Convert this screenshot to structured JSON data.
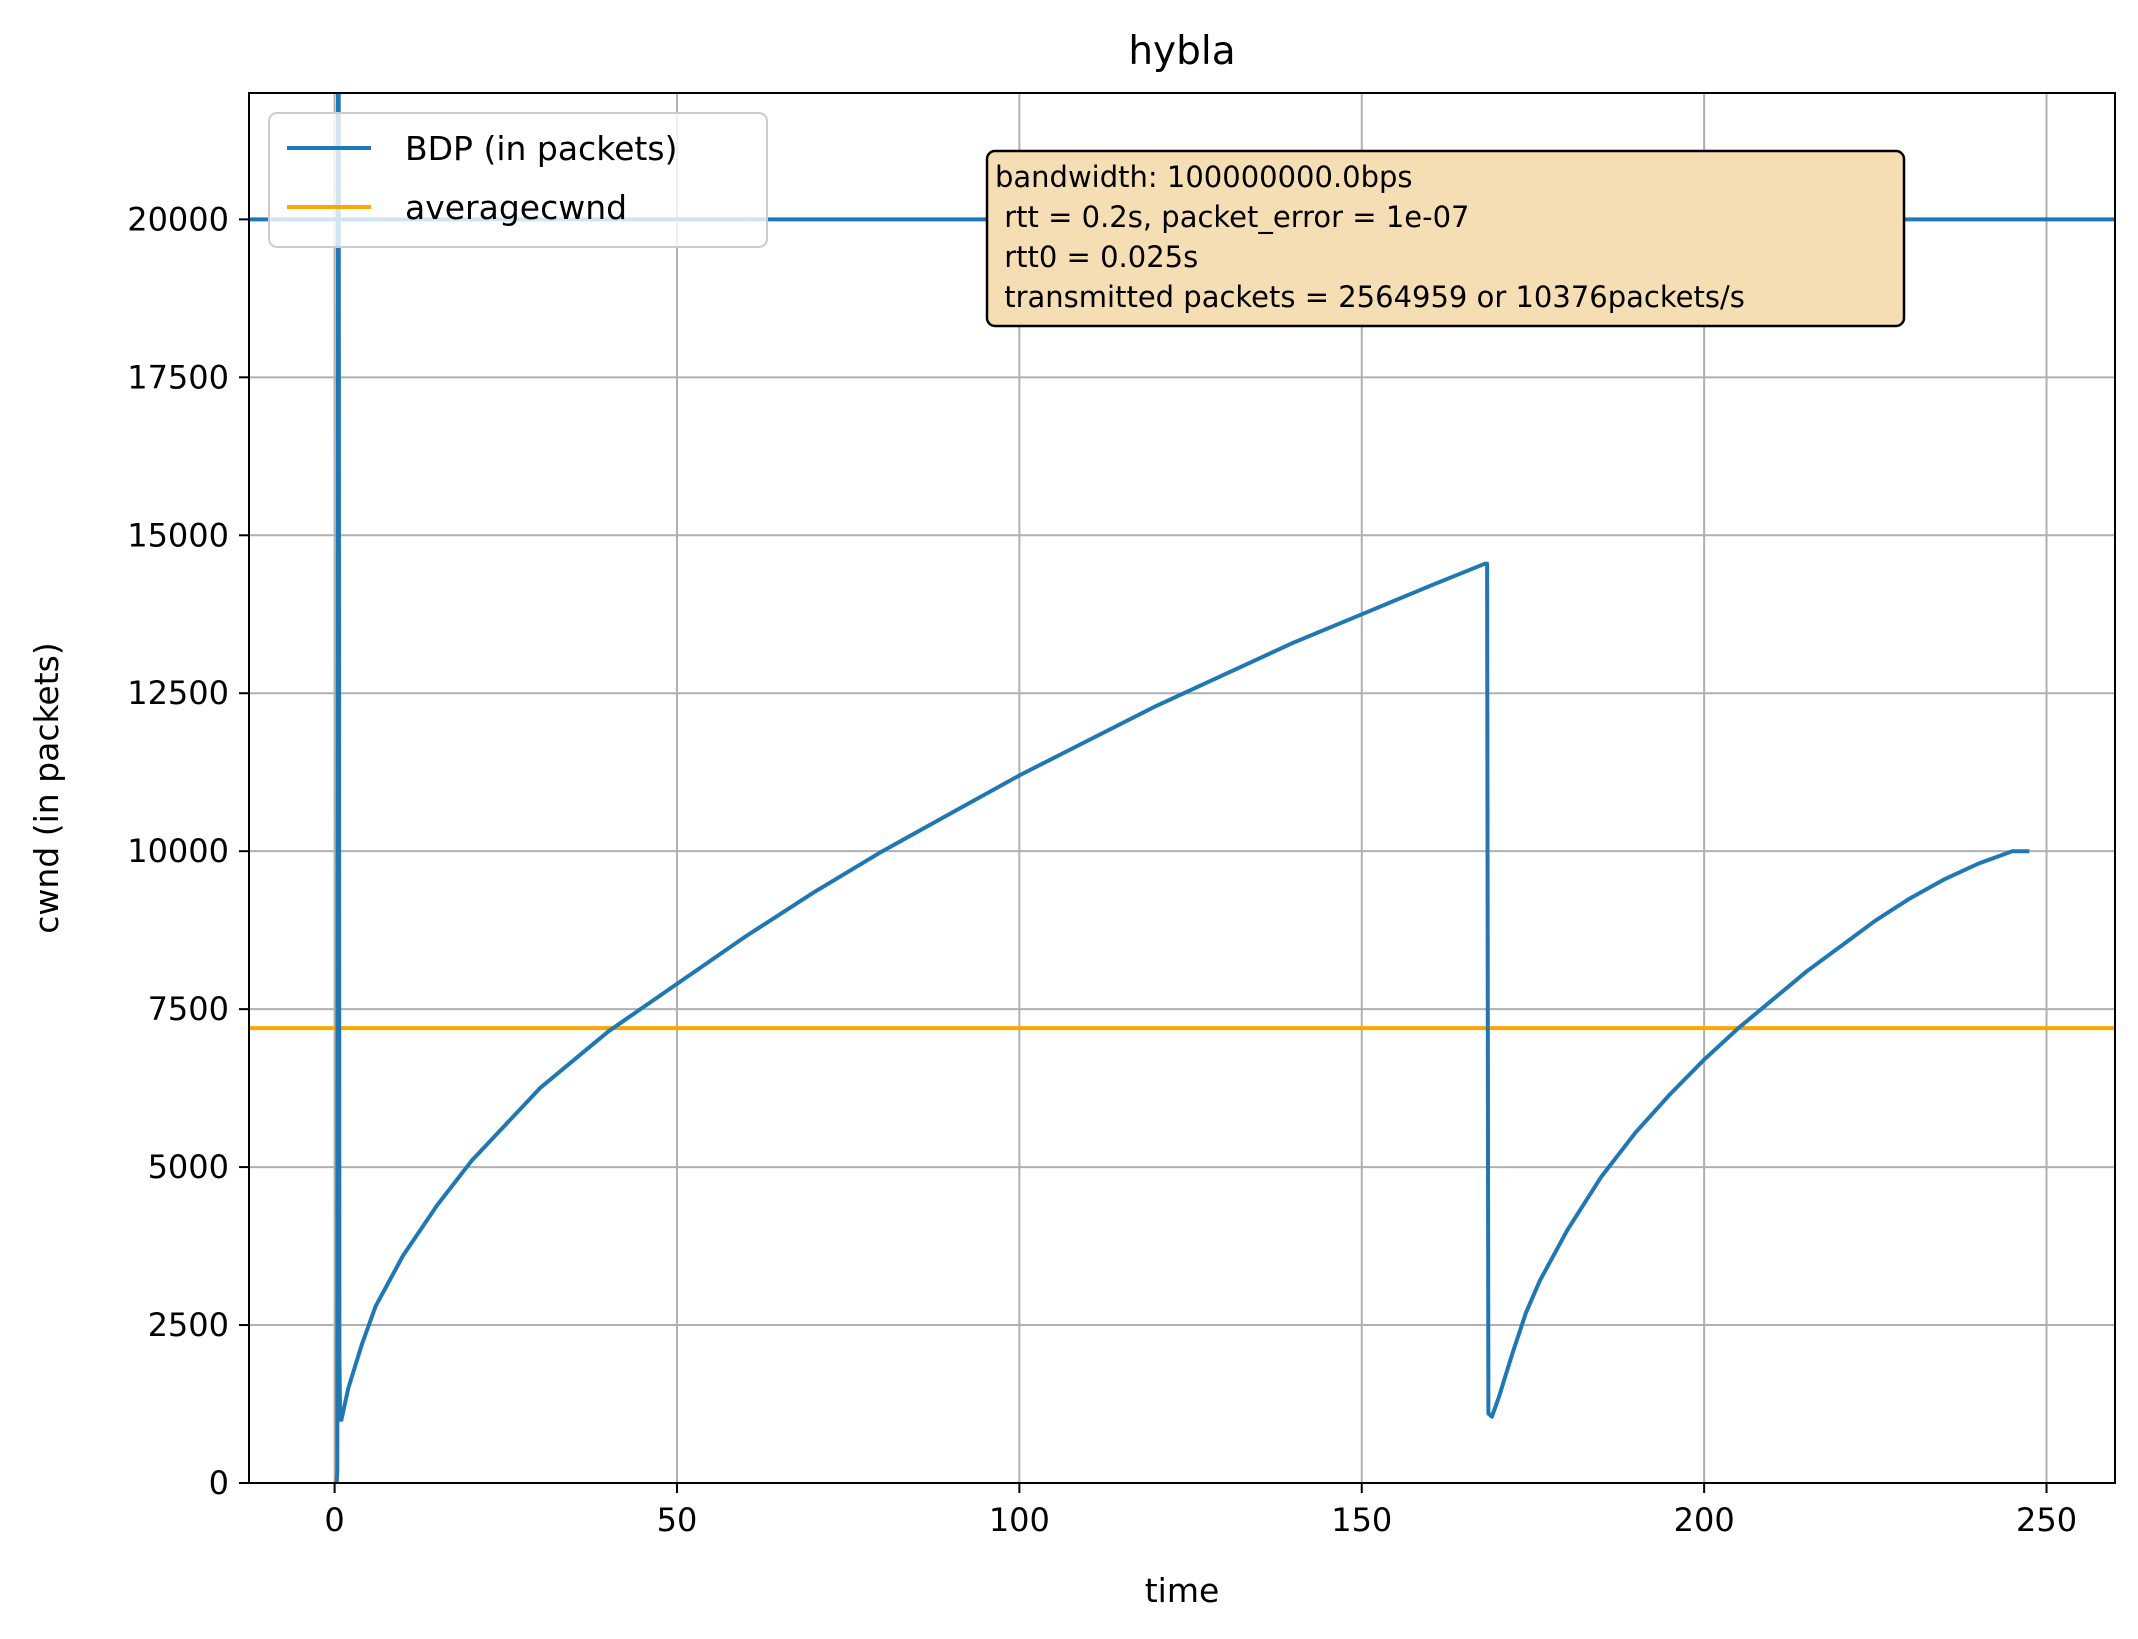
{
  "chart_data": {
    "type": "line",
    "title": "hybla",
    "xlabel": "time",
    "ylabel": "cwnd (in packets)",
    "xlim": [
      -12.5,
      260
    ],
    "ylim": [
      0,
      22000
    ],
    "xticks": [
      0,
      50,
      100,
      150,
      200,
      250
    ],
    "yticks": [
      0,
      2500,
      5000,
      7500,
      10000,
      12500,
      15000,
      17500,
      20000
    ],
    "grid": true,
    "legend_position": "upper-left",
    "series": [
      {
        "name": "BDP (in packets)",
        "color": "#1f77b4",
        "style": "horizontal",
        "y": 20000
      },
      {
        "name": "averagecwnd",
        "color": "#ffa500",
        "style": "horizontal",
        "y": 7200
      },
      {
        "name": "",
        "color": "#1f77b4",
        "style": "line",
        "x": [
          0,
          0.3,
          0.4,
          0.5,
          0.6,
          0.7,
          0.8,
          1,
          2,
          4,
          6,
          10,
          15,
          20,
          30,
          40,
          50,
          60,
          70,
          80,
          90,
          100,
          110,
          120,
          130,
          140,
          150,
          160,
          168,
          168.3,
          168.5,
          169,
          170,
          172,
          174,
          176,
          180,
          185,
          190,
          195,
          200,
          205,
          210,
          215,
          220,
          225,
          230,
          235,
          240,
          245,
          247.5
        ],
        "y": [
          0,
          0,
          200,
          22000,
          22000,
          2000,
          1000,
          1000,
          1500,
          2200,
          2800,
          3600,
          4400,
          5100,
          6250,
          7150,
          7900,
          8650,
          9350,
          10000,
          10600,
          11200,
          11750,
          12300,
          12800,
          13300,
          13750,
          14200,
          14550,
          14550,
          1100,
          1050,
          1350,
          2050,
          2700,
          3200,
          4000,
          4850,
          5550,
          6150,
          6700,
          7200,
          7650,
          8100,
          8500,
          8900,
          9250,
          9550,
          9800,
          10000,
          10000
        ]
      }
    ],
    "annotation": {
      "lines": [
        "bandwidth: 100000000.0bps",
        " rtt = 0.2s, packet_error = 1e-07",
        " rtt0 = 0.025s",
        " transmitted packets = 2564959 or 10376packets/s"
      ],
      "background": "#f5deb3"
    }
  }
}
